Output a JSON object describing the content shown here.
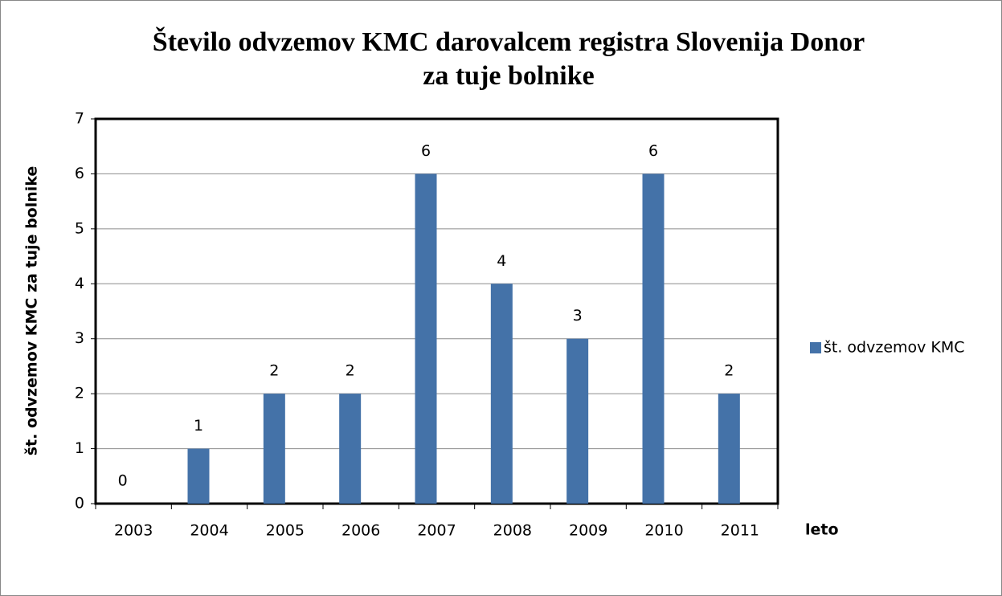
{
  "chart_data": {
    "type": "bar",
    "title": [
      "Število odvzemov KMC darovalcem registra Slovenija Donor",
      "za tuje bolnike"
    ],
    "x_label": "leto",
    "y_label": "št. odvzemov KMC za tuje bolnike",
    "categories": [
      "2003",
      "2004",
      "2005",
      "2006",
      "2007",
      "2008",
      "2009",
      "2010",
      "2011"
    ],
    "series": [
      {
        "name": "št. odvzemov KMC",
        "color": "#4472a8",
        "values": [
          0,
          1,
          2,
          2,
          6,
          4,
          3,
          6,
          2
        ]
      }
    ],
    "ylim": [
      0,
      7
    ],
    "yticks": [
      0,
      1,
      2,
      3,
      4,
      5,
      6,
      7
    ],
    "grid": true,
    "legend": "right",
    "data_labels": true
  }
}
